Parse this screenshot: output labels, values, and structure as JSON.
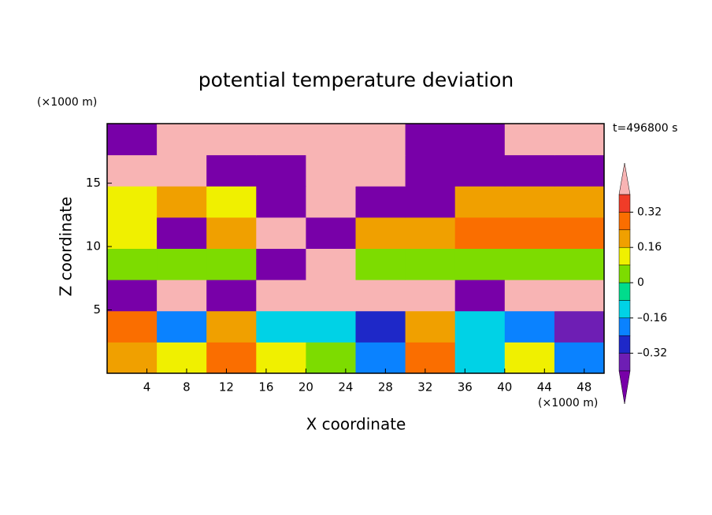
{
  "chart_data": {
    "type": "contour",
    "title": "potential temperature deviation",
    "x_label": "X coordinate",
    "y_label": "Z coordinate",
    "x_unit": "(×1000 m)",
    "y_unit": "(×1000 m)",
    "time_label": "t=496800 s",
    "xlim": [
      0,
      50
    ],
    "xticks": [
      4,
      8,
      12,
      16,
      20,
      24,
      28,
      32,
      36,
      40,
      44,
      48
    ],
    "ylim": [
      0,
      19.7
    ],
    "yticks": [
      5,
      10,
      15
    ],
    "levels": [
      -0.4,
      -0.32,
      -0.24,
      -0.16,
      -0.08,
      0,
      0.08,
      0.16,
      0.24,
      0.32,
      0.4
    ],
    "colors": [
      "#7800a8",
      "#6e1eb4",
      "#1e28c8",
      "#0a82ff",
      "#00d2e6",
      "#00dc8c",
      "#7ddc00",
      "#f0f000",
      "#f0a000",
      "#fa6e00",
      "#f03c28",
      "#f8b4b4"
    ],
    "colorbar_ticks": [
      {
        "value": -0.32,
        "label": "–0.32"
      },
      {
        "value": -0.16,
        "label": "–0.16"
      },
      0,
      0.16,
      0.32
    ],
    "field": {
      "values": [
        [
          0.2,
          0.1,
          0.24,
          0.1,
          0.04,
          -0.2,
          0.28,
          -0.1,
          0.12,
          -0.2
        ],
        [
          0.28,
          -0.2,
          0.2,
          -0.1,
          -0.12,
          -0.3,
          0.2,
          -0.12,
          -0.2,
          -0.36
        ],
        [
          -0.44,
          0.44,
          -0.44,
          0.44,
          0.44,
          0.44,
          0.44,
          -0.44,
          0.44,
          0.44
        ],
        [
          0.04,
          0.04,
          0.04,
          -0.44,
          0.44,
          0.04,
          0.04,
          0.04,
          0.04,
          0.04
        ],
        [
          0.12,
          -0.44,
          0.2,
          0.44,
          -0.44,
          0.2,
          0.2,
          0.28,
          0.28,
          0.28
        ],
        [
          0.12,
          0.2,
          0.12,
          -0.44,
          0.44,
          -0.44,
          -0.44,
          0.2,
          0.2,
          0.2
        ],
        [
          0.44,
          0.44,
          -0.44,
          -0.44,
          0.44,
          0.44,
          -0.44,
          -0.44,
          -0.44,
          -0.44
        ],
        [
          -0.44,
          0.44,
          0.44,
          0.44,
          0.44,
          0.44,
          -0.44,
          -0.44,
          0.44,
          0.44
        ]
      ]
    }
  }
}
